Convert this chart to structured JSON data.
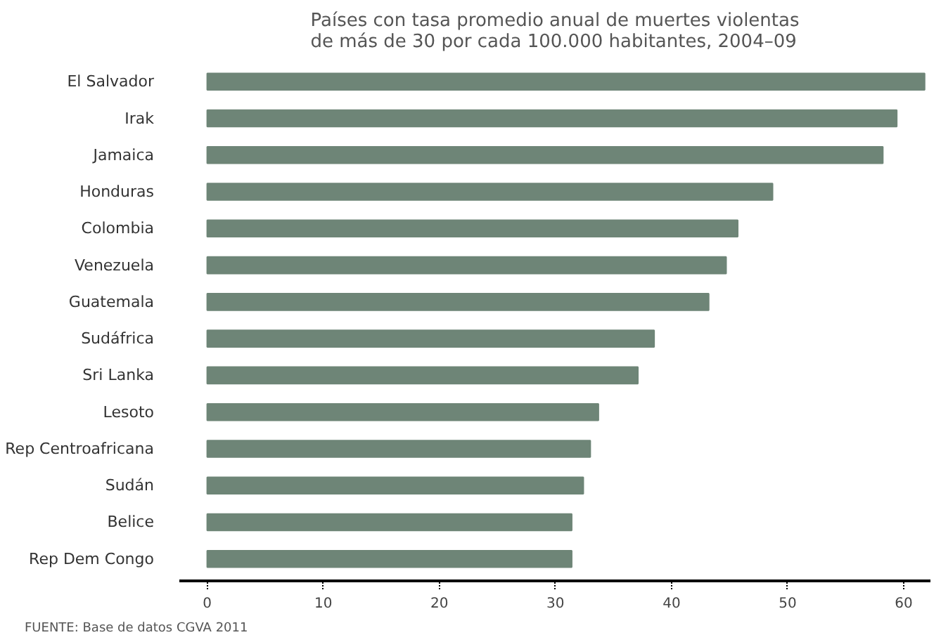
{
  "chart_data": {
    "type": "bar",
    "orientation": "horizontal",
    "title": "Países con tasa promedio anual de muertes violentas\nde más de 30 por cada 100.000 habitantes, 2004–09",
    "categories": [
      "El Salvador",
      "Irak",
      "Jamaica",
      "Honduras",
      "Colombia",
      "Venezuela",
      "Guatemala",
      "Sudáfrica",
      "Sri Lanka",
      "Lesoto",
      "Rep Centroafricana",
      "Sudán",
      "Belice",
      "Rep Dem Congo"
    ],
    "values": [
      61.8,
      59.4,
      58.2,
      48.7,
      45.7,
      44.7,
      43.2,
      38.5,
      37.1,
      33.7,
      33.0,
      32.4,
      31.4,
      31.4
    ],
    "color": "#6e8577",
    "xlim": [
      -2.4,
      62.3
    ],
    "xticks": [
      0,
      10,
      20,
      30,
      40,
      50,
      60
    ],
    "grid": false,
    "annotations": [
      "FUENTE: Base de datos CGVA 2011"
    ]
  }
}
